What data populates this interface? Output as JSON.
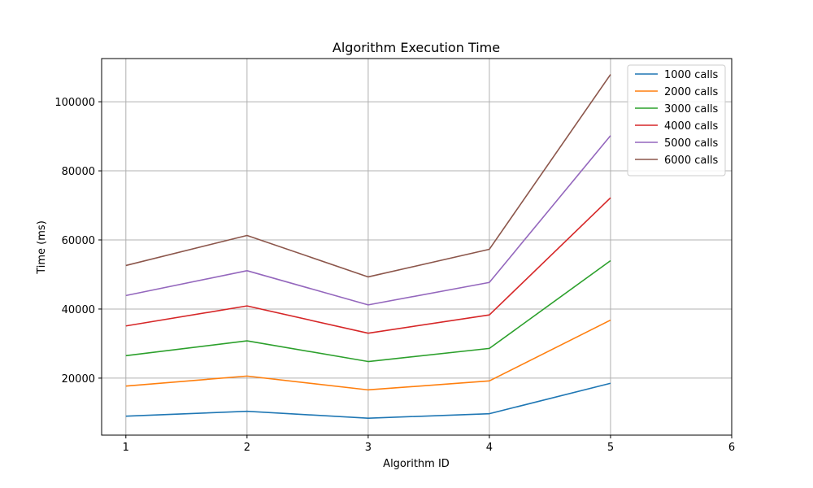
{
  "chart_data": {
    "type": "line",
    "title": "Algorithm Execution Time",
    "xlabel": "Algorithm ID",
    "ylabel": "Time (ms)",
    "x": [
      1,
      2,
      3,
      4,
      5
    ],
    "xlim": [
      0.8,
      6.0
    ],
    "ylim": [
      3500,
      112500
    ],
    "xticks": [
      "1",
      "2",
      "3",
      "4",
      "5",
      "6"
    ],
    "yticks": [
      "20000",
      "40000",
      "60000",
      "80000",
      "100000"
    ],
    "grid": true,
    "legend_position": "top-right",
    "series": [
      {
        "name": "1000 calls",
        "color": "#1f77b4",
        "values": [
          9000,
          10400,
          8400,
          9700,
          18500
        ]
      },
      {
        "name": "2000 calls",
        "color": "#ff7f0e",
        "values": [
          17700,
          20600,
          16600,
          19200,
          36800
        ]
      },
      {
        "name": "3000 calls",
        "color": "#2ca02c",
        "values": [
          26500,
          30800,
          24800,
          28600,
          54000
        ]
      },
      {
        "name": "4000 calls",
        "color": "#d62728",
        "values": [
          35100,
          40900,
          33000,
          38300,
          72200
        ]
      },
      {
        "name": "5000 calls",
        "color": "#9467bd",
        "values": [
          43900,
          51100,
          41200,
          47700,
          90200
        ]
      },
      {
        "name": "6000 calls",
        "color": "#8c564b",
        "values": [
          52600,
          61300,
          49300,
          57300,
          107900
        ]
      }
    ]
  }
}
